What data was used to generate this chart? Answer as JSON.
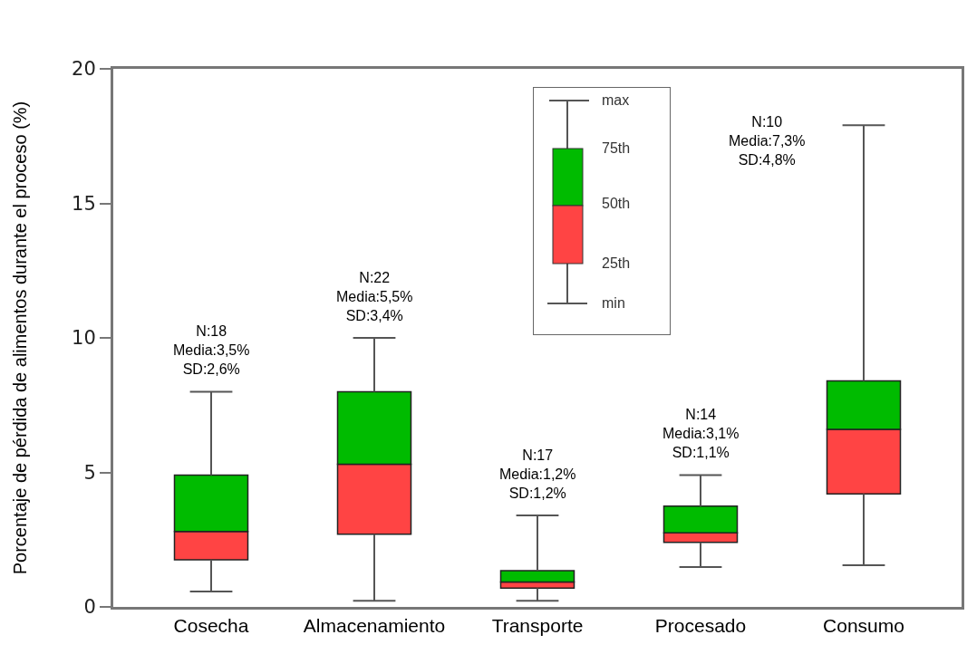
{
  "chart_data": {
    "type": "box",
    "ylabel": "Porcentaje de pérdida de alimentos durante el proceso (%)",
    "categories": [
      "Cosecha",
      "Almacenamiento",
      "Transporte",
      "Procesado",
      "Consumo"
    ],
    "colors": [
      [
        "#ff4444",
        "#00bb00"
      ],
      [
        "#ff4444",
        "#00bb00"
      ],
      [
        "#ff4444",
        "#00bb00"
      ],
      [
        "#ff4444",
        "#00bb00"
      ],
      [
        "#ff4444",
        "#00bb00"
      ]
    ],
    "boxes": [
      {
        "low": 0.57,
        "q1": 1.75,
        "median": 2.8,
        "q3": 4.9,
        "high": 8.0
      },
      {
        "low": 0.23,
        "q1": 2.7,
        "median": 5.3,
        "q3": 8.0,
        "high": 10.0
      },
      {
        "low": 0.23,
        "q1": 0.7,
        "median": 0.93,
        "q3": 1.35,
        "high": 3.4
      },
      {
        "low": 1.48,
        "q1": 2.4,
        "median": 2.75,
        "q3": 3.75,
        "high": 4.9
      },
      {
        "low": 1.55,
        "q1": 4.2,
        "median": 6.6,
        "q3": 8.4,
        "high": 17.9
      }
    ],
    "ylim": [
      0,
      20
    ],
    "yticks": [
      0,
      5,
      10,
      15,
      20
    ],
    "grid": false,
    "annotations": [
      "N:18\nMedia:3,5%\nSD:2,6%",
      "N:22\nMedia:5,5%\nSD:3,4%",
      "N:17\nMedia:1,2%\nSD:1,2%",
      "N:14\nMedia:3,1%\nSD:1,1%",
      "N:10\nMedia:7,3%\nSD:4,8%",
      "max",
      "75th",
      "50th",
      "25th",
      "min"
    ]
  }
}
